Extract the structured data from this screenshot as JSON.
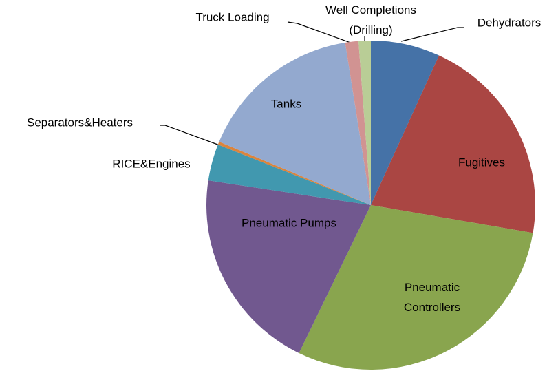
{
  "chart_data": {
    "type": "pie",
    "categories": [
      "Dehydrators",
      "Fugitives",
      "Pneumatic Controllers",
      "Pneumatic Pumps",
      "RICE&Engines",
      "Separators&Heaters",
      "Tanks",
      "Truck Loading",
      "Well Completions (Drilling)"
    ],
    "values": [
      6.8,
      20.9,
      29.5,
      20.2,
      3.6,
      0.3,
      16.2,
      1.3,
      1.2
    ],
    "colors": [
      "#4572a7",
      "#aa4643",
      "#89a54e",
      "#71588f",
      "#4198af",
      "#db843d",
      "#93a9cf",
      "#d19392",
      "#b9cd96"
    ]
  }
}
